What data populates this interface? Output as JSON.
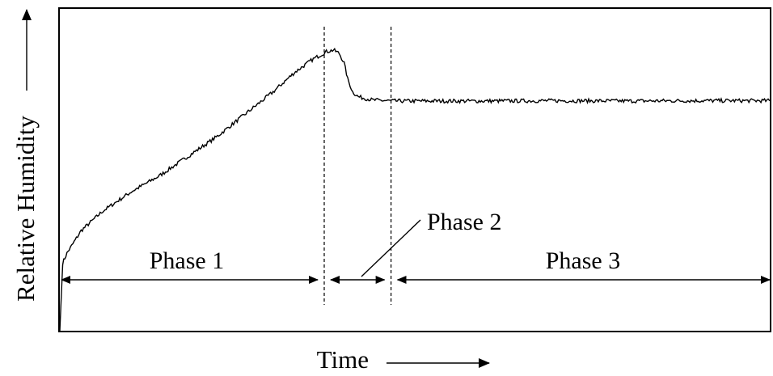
{
  "chart_data": {
    "type": "line",
    "title": "",
    "xlabel": "Time",
    "ylabel": "Relative Humidity",
    "x_ticks": false,
    "y_ticks": false,
    "grid": false,
    "xlim": [
      0,
      1
    ],
    "ylim": [
      0,
      1
    ],
    "series": [
      {
        "values": [
          [
            0.0,
            0.0
          ],
          [
            0.004,
            0.21
          ],
          [
            0.01,
            0.24
          ],
          [
            0.03,
            0.31
          ],
          [
            0.06,
            0.37
          ],
          [
            0.1,
            0.43
          ],
          [
            0.14,
            0.48
          ],
          [
            0.18,
            0.54
          ],
          [
            0.22,
            0.6
          ],
          [
            0.26,
            0.67
          ],
          [
            0.3,
            0.74
          ],
          [
            0.33,
            0.8
          ],
          [
            0.355,
            0.84
          ],
          [
            0.375,
            0.865
          ],
          [
            0.385,
            0.87
          ],
          [
            0.393,
            0.86
          ],
          [
            0.4,
            0.83
          ],
          [
            0.405,
            0.78
          ],
          [
            0.412,
            0.74
          ],
          [
            0.42,
            0.725
          ],
          [
            0.44,
            0.715
          ],
          [
            0.47,
            0.712
          ],
          [
            0.5,
            0.712
          ],
          [
            0.6,
            0.712
          ],
          [
            0.7,
            0.713
          ],
          [
            0.8,
            0.712
          ],
          [
            0.9,
            0.713
          ],
          [
            1.0,
            0.713
          ]
        ],
        "noise": 0.006
      }
    ],
    "dividers": [
      0.372,
      0.466
    ],
    "phases": [
      {
        "label": "Phase 1",
        "start": 0.0,
        "end": 0.372
      },
      {
        "label": "Phase 2",
        "start": 0.372,
        "end": 0.466
      },
      {
        "label": "Phase 3",
        "start": 0.466,
        "end": 1.0
      }
    ],
    "colors": {
      "line": "#000000",
      "axis": "#000000",
      "divider": "#000000"
    }
  }
}
